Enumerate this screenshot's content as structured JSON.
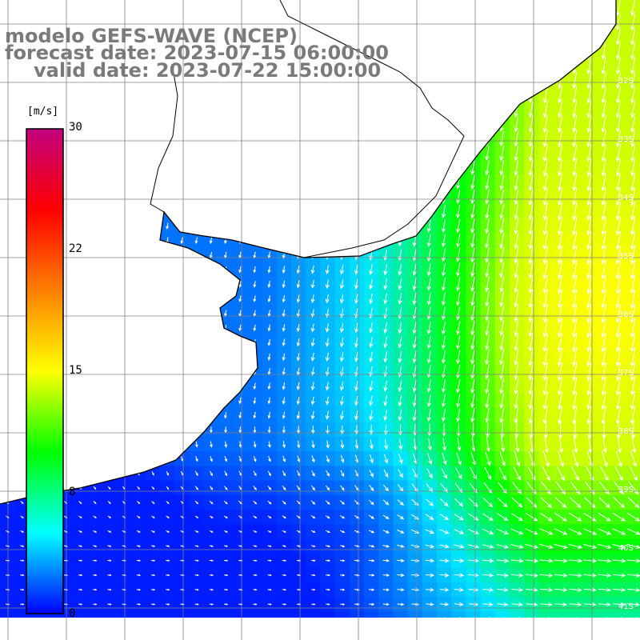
{
  "header": {
    "model_line": "modelo GEFS-WAVE (NCEP)",
    "forecast_line": "forecast date: 2023-07-15 06:00:00",
    "valid_line": "valid date: 2023-07-22 15:00:00"
  },
  "colorbar": {
    "units": "[m/s]",
    "ticks": [
      {
        "value": 30,
        "label": "30"
      },
      {
        "value": 22,
        "label": "22"
      },
      {
        "value": 15,
        "label": "15"
      },
      {
        "value": 8,
        "label": "8"
      },
      {
        "value": 0,
        "label": "0"
      }
    ],
    "colors": [
      "#0000ff",
      "#00ffff",
      "#00ff00",
      "#ffff00",
      "#ff7f00",
      "#ff0000",
      "#c0007f"
    ]
  },
  "map": {
    "latitude_labels": [
      "32S",
      "33S",
      "34S",
      "35S",
      "36S",
      "37S",
      "38S",
      "39S",
      "40S",
      "41S"
    ],
    "land_color": "#ffffff",
    "grid_color": "#808080",
    "arrow_color": "#ffffff",
    "coast_color": "#000000"
  }
}
